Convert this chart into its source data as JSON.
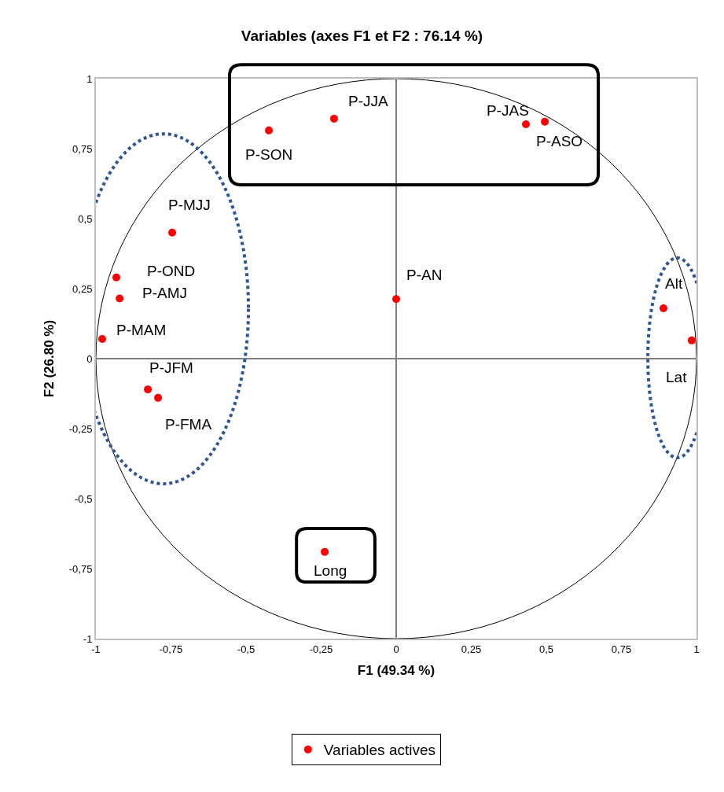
{
  "chart_data": {
    "type": "scatter",
    "title": "Variables (axes F1 et F2 : 76.14 %)",
    "xlabel": "F1 (49.34 %)",
    "ylabel": "F2 (26.80 %)",
    "series": [
      {
        "name": "Variables actives",
        "color": "#ff0000",
        "x": [
          -0.424,
          -0.207,
          0.432,
          0.495,
          -0.746,
          -0.932,
          -0.921,
          -0.979,
          -0.827,
          -0.793,
          0.0,
          0.89,
          0.984,
          -0.238
        ],
        "values": [
          0.815,
          0.857,
          0.837,
          0.846,
          0.45,
          0.29,
          0.215,
          0.07,
          -0.11,
          -0.14,
          0.213,
          0.18,
          0.065,
          -0.69
        ]
      }
    ],
    "annotations": [
      {
        "text": "P-SON",
        "x": -0.424,
        "y": 0.815
      },
      {
        "text": "P-JJA",
        "x": -0.207,
        "y": 0.857
      },
      {
        "text": "P-JAS",
        "x": 0.432,
        "y": 0.837
      },
      {
        "text": "P-ASO",
        "x": 0.495,
        "y": 0.846
      },
      {
        "text": "P-MJJ",
        "x": -0.746,
        "y": 0.45
      },
      {
        "text": "P-OND",
        "x": -0.932,
        "y": 0.29
      },
      {
        "text": "P-AMJ",
        "x": -0.921,
        "y": 0.215
      },
      {
        "text": "P-MAM",
        "x": -0.979,
        "y": 0.07
      },
      {
        "text": "P-JFM",
        "x": -0.827,
        "y": -0.11
      },
      {
        "text": "P-FMA",
        "x": -0.793,
        "y": -0.14
      },
      {
        "text": "P-AN",
        "x": 0.0,
        "y": 0.213
      },
      {
        "text": "Alt",
        "x": 0.89,
        "y": 0.18
      },
      {
        "text": "Lat",
        "x": 0.984,
        "y": 0.065
      },
      {
        "text": "Long",
        "x": -0.238,
        "y": -0.69
      }
    ],
    "xlim": [
      -1,
      1
    ],
    "ylim": [
      -1,
      1
    ],
    "xticks": [
      -1,
      {
        "value": -0.75,
        "label": "-0,75"
      },
      {
        "value": -0.5,
        "label": "-0,5"
      },
      {
        "value": -0.25,
        "label": "-0,25"
      },
      0,
      {
        "value": 0.25,
        "label": "0,25"
      },
      {
        "value": 0.5,
        "label": "0,5"
      },
      {
        "value": 0.75,
        "label": "0,75"
      },
      1
    ],
    "yticks": [
      -1,
      {
        "value": -0.75,
        "label": "-0,75"
      },
      {
        "value": -0.5,
        "label": "-0,5"
      },
      {
        "value": -0.25,
        "label": "-0,25"
      },
      0,
      {
        "value": 0.25,
        "label": "0,25"
      },
      {
        "value": 0.5,
        "label": "0,5"
      },
      {
        "value": 0.75,
        "label": "0,75"
      },
      1
    ],
    "legend": "bottom",
    "marker": "circle"
  }
}
